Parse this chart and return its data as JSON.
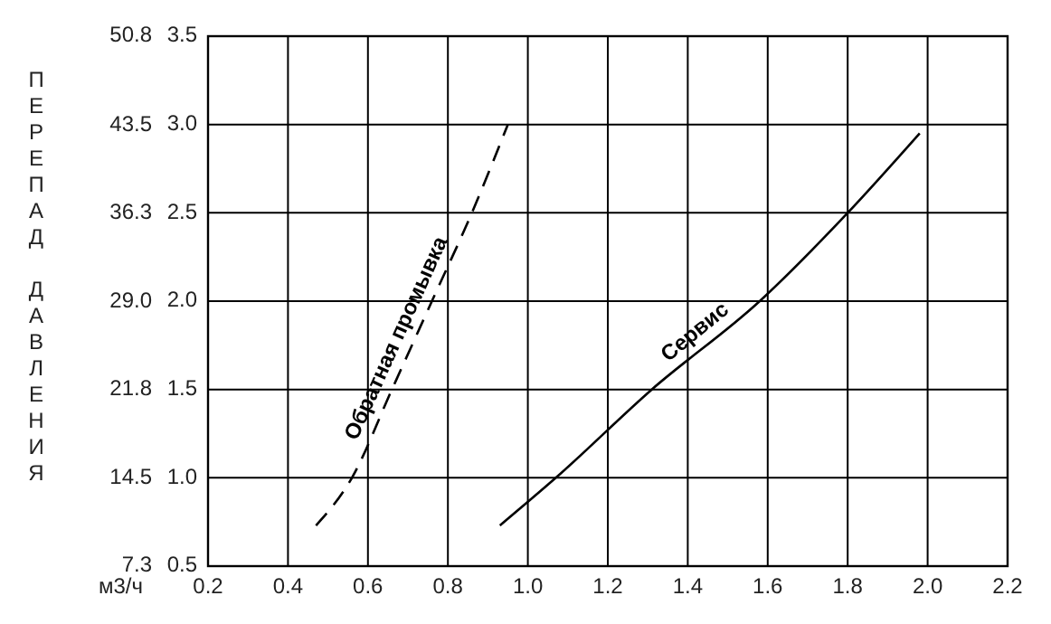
{
  "chart_data": {
    "type": "line",
    "xlabel": "м3/ч",
    "ylabel": "ПЕРЕПАД ДАВЛЕНИЯ",
    "xlim": [
      0.2,
      2.2
    ],
    "xticks": [
      {
        "value": 0.2,
        "label": "0.2"
      },
      {
        "value": 0.4,
        "label": "0.4"
      },
      {
        "value": 0.6,
        "label": "0.6"
      },
      {
        "value": 0.8,
        "label": "0.8"
      },
      {
        "value": 1.0,
        "label": "1.0"
      },
      {
        "value": 1.2,
        "label": "1.2"
      },
      {
        "value": 1.4,
        "label": "1.4"
      },
      {
        "value": 1.6,
        "label": "1.6"
      },
      {
        "value": 1.8,
        "label": "1.8"
      },
      {
        "value": 2.0,
        "label": "2.0"
      },
      {
        "value": 2.2,
        "label": "2.2"
      }
    ],
    "ylim": [
      0.5,
      3.5
    ],
    "yticks": [
      {
        "value": 0.5,
        "label": "0.5"
      },
      {
        "value": 1.0,
        "label": "1.0"
      },
      {
        "value": 1.5,
        "label": "1.5"
      },
      {
        "value": 2.0,
        "label": "2.0"
      },
      {
        "value": 2.5,
        "label": "2.5"
      },
      {
        "value": 3.0,
        "label": "3.0"
      },
      {
        "value": 3.5,
        "label": "3.5"
      }
    ],
    "y2lim": [
      7.3,
      50.8
    ],
    "y2ticks": [
      7.3,
      14.5,
      21.8,
      {
        "value": 29.0,
        "label": "29.0"
      },
      36.3,
      43.5,
      50.8
    ],
    "grid": true,
    "marker": "none",
    "series": [
      {
        "name": "Обратная промывка",
        "color": "#000000",
        "line_style": "dashed",
        "x": [
          0.47,
          0.56,
          0.66,
          0.76,
          0.86,
          0.95
        ],
        "values": [
          0.73,
          1.0,
          1.5,
          2.0,
          2.5,
          3.0
        ]
      },
      {
        "name": "Сервис",
        "color": "#000000",
        "line_style": "solid",
        "x": [
          0.93,
          1.07,
          1.31,
          1.58,
          1.8,
          1.98
        ],
        "values": [
          0.73,
          1.0,
          1.5,
          2.0,
          2.5,
          2.95
        ]
      }
    ]
  }
}
